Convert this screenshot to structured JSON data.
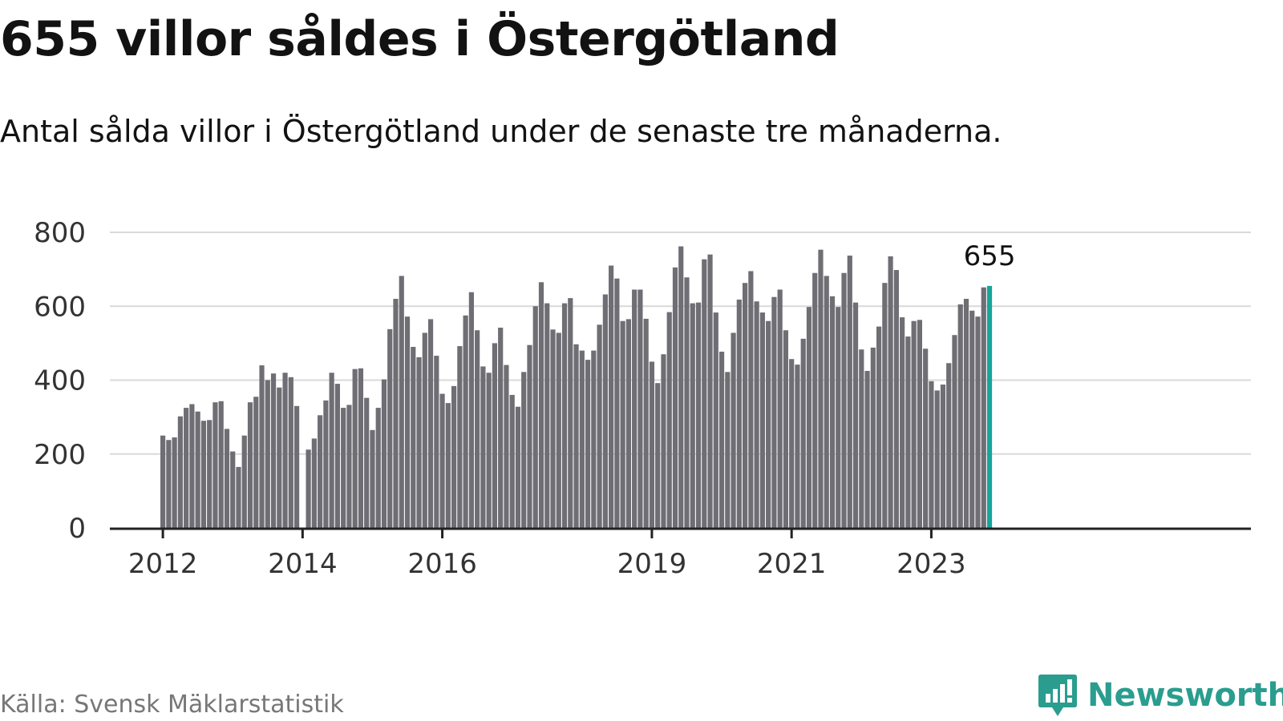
{
  "title": "655 villor såldes i Östergötland",
  "subtitle": "Antal sålda villor i Östergötland under de senaste tre månaderna.",
  "source": "Källa: Svensk Mäklarstatistik",
  "brand": {
    "name": "Newsworthy",
    "icon": "newsworthy-logo-icon",
    "color": "#2a9d8f"
  },
  "colors": {
    "bar": "#6f6e74",
    "highlight": "#16a59a",
    "grid": "#d9d9d9",
    "axis": "#222222"
  },
  "chart_data": {
    "type": "bar",
    "title": "655 villor såldes i Östergötland",
    "subtitle": "Antal sålda villor i Östergötland under de senaste tre månaderna.",
    "xlabel": "",
    "ylabel": "",
    "ylim": [
      0,
      800
    ],
    "yticks": [
      "0",
      "200",
      "400",
      "600",
      "800"
    ],
    "grid": true,
    "x_tick_labels": [
      {
        "index": 0,
        "label": "2012"
      },
      {
        "index": 24,
        "label": "2014"
      },
      {
        "index": 48,
        "label": "2016"
      },
      {
        "index": 84,
        "label": "2019"
      },
      {
        "index": 108,
        "label": "2021"
      },
      {
        "index": 132,
        "label": "2023"
      }
    ],
    "highlight_label": "655",
    "start": "2012-01",
    "period": "month",
    "values": [
      250,
      238,
      245,
      302,
      325,
      335,
      315,
      290,
      292,
      340,
      343,
      268,
      207,
      165,
      250,
      340,
      355,
      440,
      400,
      418,
      380,
      420,
      408,
      330,
      null,
      212,
      242,
      305,
      345,
      420,
      390,
      325,
      333,
      430,
      432,
      352,
      265,
      325,
      402,
      538,
      620,
      682,
      572,
      490,
      462,
      528,
      565,
      466,
      363,
      338,
      384,
      492,
      575,
      638,
      535,
      437,
      420,
      500,
      542,
      441,
      360,
      328,
      422,
      495,
      600,
      665,
      608,
      537,
      528,
      608,
      622,
      497,
      480,
      455,
      480,
      550,
      632,
      710,
      675,
      560,
      565,
      645,
      645,
      566,
      450,
      392,
      470,
      584,
      705,
      762,
      678,
      608,
      610,
      727,
      740,
      583,
      477,
      422,
      528,
      618,
      663,
      695,
      613,
      583,
      560,
      625,
      645,
      535,
      457,
      442,
      512,
      598,
      690,
      753,
      682,
      627,
      598,
      690,
      737,
      610,
      483,
      425,
      488,
      545,
      663,
      735,
      698,
      570,
      518,
      560,
      563,
      485,
      397,
      372,
      388,
      446,
      522,
      605,
      620,
      588,
      572,
      651,
      655
    ]
  }
}
